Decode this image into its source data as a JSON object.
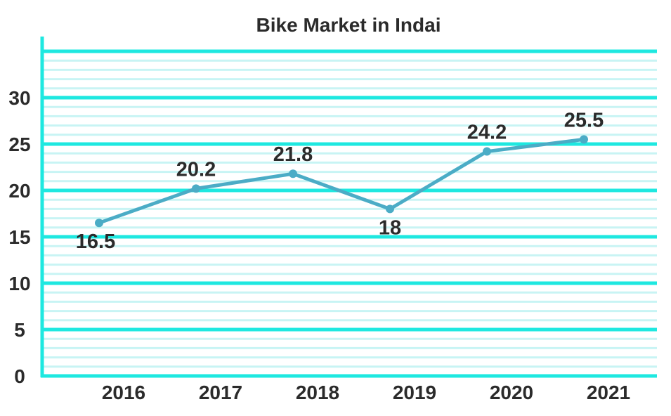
{
  "chart_data": {
    "type": "line",
    "title": "Bike Market in Indai",
    "xlabel": "",
    "ylabel": "",
    "categories": [
      "2016",
      "2017",
      "2018",
      "2019",
      "2020",
      "2021"
    ],
    "series": [
      {
        "values": [
          16.5,
          20.2,
          21.8,
          18,
          24.2,
          25.5
        ]
      }
    ],
    "data_labels": [
      "16.5",
      "20.2",
      "21.8",
      "18",
      "24.2",
      "25.5"
    ],
    "yticks": [
      "0",
      "5",
      "10",
      "15",
      "20",
      "25",
      "30"
    ],
    "ylim": [
      0,
      35
    ],
    "grid": true,
    "colors": {
      "line": "#4bacc6",
      "axis": "#1ee8e0",
      "major_grid": "#1ee8e0",
      "minor_grid": "#c8f4f4",
      "text": "#2b2b2b"
    }
  }
}
